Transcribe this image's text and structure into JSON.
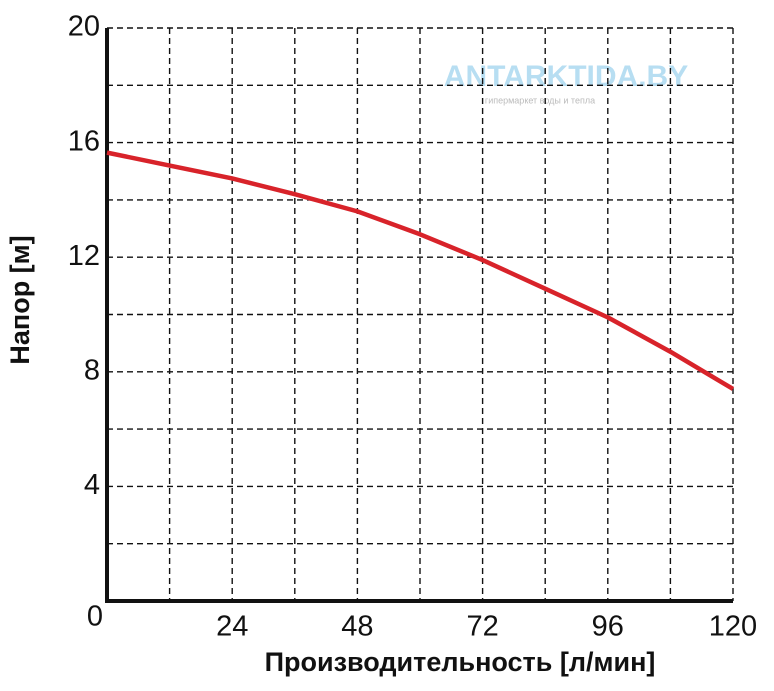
{
  "chart_data": {
    "type": "line",
    "x_label": "Производительность [л/мин]",
    "y_label": "Напор [м]",
    "watermark": "ANTARKTIDA.BY",
    "watermark_subtitle": "гипермаркет воды и тепла",
    "x": [
      0,
      12,
      24,
      36,
      48,
      60,
      72,
      84,
      96,
      108,
      120
    ],
    "series": [
      {
        "color": "#d8232a",
        "values": [
          15.65,
          15.2,
          14.75,
          14.2,
          13.6,
          12.8,
          11.9,
          10.9,
          9.9,
          8.7,
          7.4
        ]
      }
    ],
    "xlim": [
      0,
      120
    ],
    "ylim": [
      0,
      20
    ],
    "xticks": [
      0,
      24,
      48,
      72,
      96,
      120
    ],
    "yticks": [
      4,
      8,
      12,
      16,
      20
    ],
    "xminor": [
      12,
      36,
      60,
      84,
      108
    ],
    "yminor": [
      2,
      6,
      10,
      14,
      18
    ],
    "grid": true
  }
}
